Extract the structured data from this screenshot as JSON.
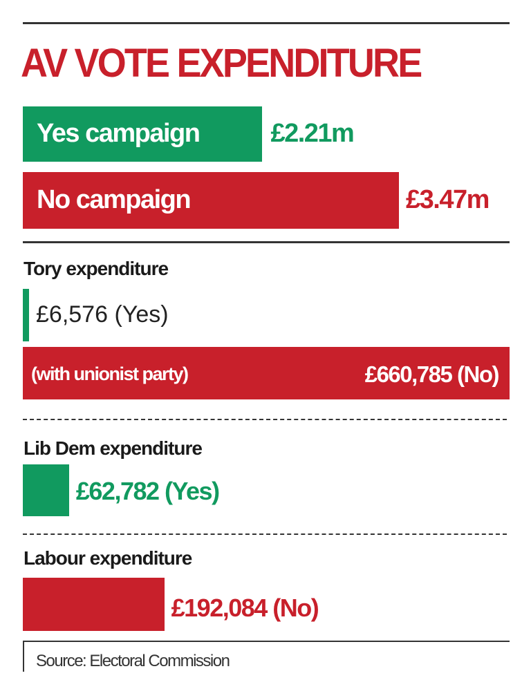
{
  "chart_data": {
    "type": "bar",
    "title": "AV VOTE EXPENDITURE",
    "colors": {
      "yes": "#119a5f",
      "no": "#c8202b"
    },
    "campaigns": [
      {
        "label": "Yes campaign",
        "value": 2.21,
        "unit": "£m",
        "value_label": "£2.21m",
        "side": "yes"
      },
      {
        "label": "No campaign",
        "value": 3.47,
        "unit": "£m",
        "value_label": "£3.47m",
        "side": "no"
      }
    ],
    "parties": [
      {
        "heading": "Tory expenditure",
        "bars": [
          {
            "value": 6576,
            "value_label": "£6,576 (Yes)",
            "side": "yes"
          },
          {
            "value": 660785,
            "note": "(with unionist party)",
            "value_label": "£660,785 (No)",
            "side": "no"
          }
        ]
      },
      {
        "heading": "Lib Dem expenditure",
        "bars": [
          {
            "value": 62782,
            "value_label": "£62,782 (Yes)",
            "side": "yes"
          }
        ]
      },
      {
        "heading": "Labour expenditure",
        "bars": [
          {
            "value": 192084,
            "value_label": "£192,084 (No)",
            "side": "no"
          }
        ]
      }
    ],
    "source": "Source: Electoral Commission"
  }
}
